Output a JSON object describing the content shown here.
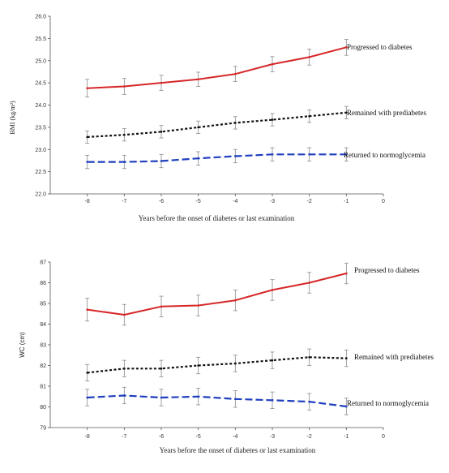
{
  "chart_data": [
    {
      "type": "line",
      "xlabel": "Years before the onset of diabetes or last examination",
      "ylabel": "BMI (kg/m²)",
      "x": [
        -8,
        -7,
        -6,
        -5,
        -4,
        -3,
        -2,
        -1
      ],
      "xticks": [
        -8,
        -7,
        -6,
        -5,
        -4,
        -3,
        -2,
        -1,
        0
      ],
      "xlim": [
        -9,
        0
      ],
      "ylim": [
        22.0,
        26.0
      ],
      "yticks": [
        "22.0",
        "22.5",
        "23.0",
        "23.5",
        "24.0",
        "24.5",
        "25.0",
        "25.5",
        "26.0"
      ],
      "series": [
        {
          "name": "Progressed to diabetes",
          "color": "#d62728",
          "style": "solid",
          "values": [
            24.38,
            24.42,
            24.5,
            24.58,
            24.7,
            24.92,
            25.08,
            25.3
          ],
          "err": [
            0.2,
            0.18,
            0.17,
            0.16,
            0.17,
            0.17,
            0.18,
            0.18
          ]
        },
        {
          "name": "Remained with prediabetes",
          "color": "#111111",
          "style": "dotted",
          "values": [
            23.28,
            23.33,
            23.4,
            23.5,
            23.6,
            23.67,
            23.75,
            23.83
          ],
          "err": [
            0.14,
            0.14,
            0.14,
            0.14,
            0.14,
            0.14,
            0.14,
            0.14
          ]
        },
        {
          "name": "Returned to normoglycemia",
          "color": "#1f3fbf",
          "style": "dashed",
          "values": [
            22.72,
            22.72,
            22.74,
            22.8,
            22.85,
            22.89,
            22.89,
            22.89
          ],
          "err": [
            0.15,
            0.15,
            0.15,
            0.15,
            0.15,
            0.15,
            0.15,
            0.15
          ]
        }
      ]
    },
    {
      "type": "line",
      "xlabel": "Years before the onset of diabetes or last examination",
      "ylabel": "WC (cm)",
      "x": [
        -8,
        -7,
        -6,
        -5,
        -4,
        -3,
        -2,
        -1
      ],
      "xticks": [
        -8,
        -7,
        -6,
        -5,
        -4,
        -3,
        -2,
        -1,
        0
      ],
      "xlim": [
        -9,
        0
      ],
      "ylim": [
        79,
        87
      ],
      "yticks": [
        "79",
        "80",
        "81",
        "82",
        "83",
        "84",
        "85",
        "86",
        "87"
      ],
      "series": [
        {
          "name": "Progressed to diabetes",
          "color": "#d62728",
          "style": "solid",
          "values": [
            84.7,
            84.45,
            84.85,
            84.9,
            85.15,
            85.65,
            86.0,
            86.45
          ],
          "err": [
            0.55,
            0.5,
            0.5,
            0.5,
            0.5,
            0.5,
            0.5,
            0.5
          ]
        },
        {
          "name": "Remained with prediabetes",
          "color": "#111111",
          "style": "dotted",
          "values": [
            81.65,
            81.85,
            81.85,
            82.0,
            82.1,
            82.25,
            82.4,
            82.35
          ],
          "err": [
            0.4,
            0.4,
            0.4,
            0.4,
            0.4,
            0.4,
            0.4,
            0.4
          ]
        },
        {
          "name": "Returned to normoglycemia",
          "color": "#1f3fbf",
          "style": "dashed",
          "values": [
            80.45,
            80.55,
            80.45,
            80.5,
            80.38,
            80.32,
            80.25,
            80.02
          ],
          "err": [
            0.4,
            0.4,
            0.4,
            0.4,
            0.4,
            0.4,
            0.4,
            0.4
          ]
        }
      ]
    }
  ]
}
